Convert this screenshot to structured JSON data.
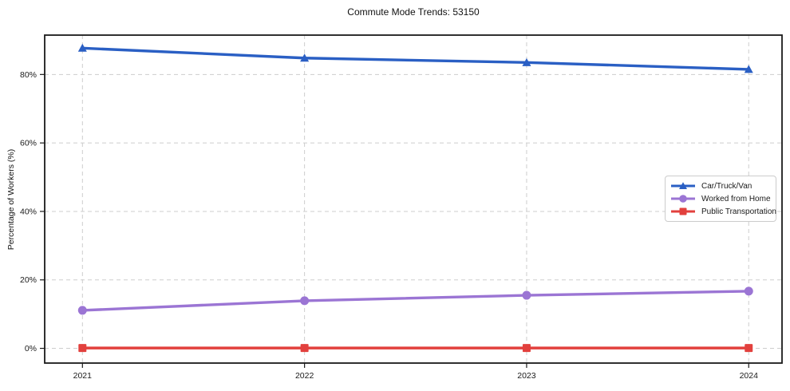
{
  "title": "Commute Mode Trends: 53150",
  "chart_data": {
    "type": "line",
    "title": "Commute Mode Trends: 53150",
    "xlabel": "",
    "ylabel": "Percentage of Workers (%)",
    "x": [
      2021,
      2022,
      2023,
      2024
    ],
    "x_labels": [
      "2021",
      "2022",
      "2023",
      "2024"
    ],
    "series": [
      {
        "name": "Car/Truck/Van",
        "values": [
          87.7,
          84.8,
          83.5,
          81.5
        ],
        "color": "#2a5fc4",
        "marker": "triangle"
      },
      {
        "name": "Worked from Home",
        "values": [
          11.1,
          13.9,
          15.5,
          16.7
        ],
        "color": "#9b75d4",
        "marker": "circle"
      },
      {
        "name": "Public Transportation",
        "values": [
          0.1,
          0.1,
          0.1,
          0.1
        ],
        "color": "#e2403d",
        "marker": "square"
      }
    ],
    "yticks": [
      0,
      20,
      40,
      60,
      80
    ],
    "ytick_labels": [
      "0%",
      "20%",
      "40%",
      "60%",
      "80%"
    ],
    "ylim": [
      -4.3,
      91.5
    ],
    "xlim": [
      2020.83,
      2024.15
    ],
    "grid": true,
    "grid_style": "dashed",
    "legend_position": "center-right"
  },
  "colors": {
    "grid": "#cdcdcd",
    "spine": "#1a1a1a",
    "tick_text": "#1a1a1a",
    "background": "#ffffff"
  }
}
